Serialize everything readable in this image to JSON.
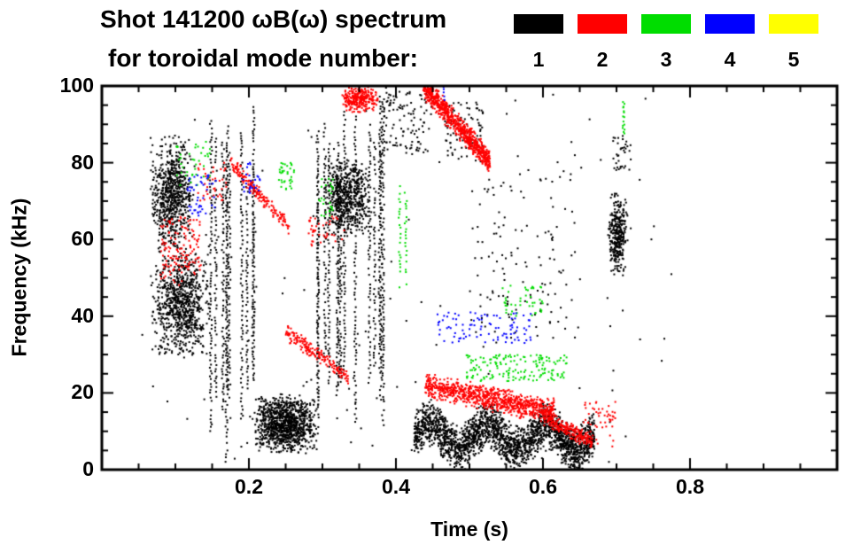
{
  "chart_data": {
    "type": "scatter",
    "title_line1": "Shot 141200 ωB(ω) spectrum",
    "title_line2": "for toroidal mode number:",
    "xlabel": "Time (s)",
    "ylabel": "Frequency (kHz)",
    "xlim": [
      0.0,
      1.0
    ],
    "ylim": [
      0,
      100
    ],
    "x_major_ticks": [
      0.2,
      0.4,
      0.6,
      0.8
    ],
    "x_tick_labels": [
      "0.2",
      "0.4",
      "0.6",
      "0.8"
    ],
    "x_minor_step": 0.05,
    "y_major_ticks": [
      0,
      20,
      40,
      60,
      80,
      100
    ],
    "y_tick_labels": [
      "0",
      "20",
      "40",
      "60",
      "80",
      "100"
    ],
    "y_minor_step": 5,
    "grid": false,
    "legend_position": "top-right",
    "legend": [
      {
        "label": "1",
        "color": "#000000"
      },
      {
        "label": "2",
        "color": "#ff0000"
      },
      {
        "label": "3",
        "color": "#00dd00"
      },
      {
        "label": "4",
        "color": "#0000ff"
      },
      {
        "label": "5",
        "color": "#ffff00"
      }
    ],
    "mode_colors": {
      "1": "#000000",
      "2": "#ff0000",
      "3": "#00dd00",
      "4": "#0000ff",
      "5": "#ffff00"
    },
    "clusters": [
      {
        "mode": "1",
        "shape": "blob",
        "t": [
          0.065,
          0.125
        ],
        "f": [
          55,
          88
        ],
        "n": 700
      },
      {
        "mode": "1",
        "shape": "blob",
        "t": [
          0.065,
          0.148
        ],
        "f": [
          28,
          58
        ],
        "n": 800
      },
      {
        "mode": "1",
        "shape": "vlines",
        "t": [
          0.145,
          0.228
        ],
        "f": [
          2,
          97
        ],
        "lines": 10
      },
      {
        "mode": "1",
        "shape": "blob",
        "t": [
          0.205,
          0.295
        ],
        "f": [
          4,
          20
        ],
        "n": 1000
      },
      {
        "mode": "1",
        "shape": "vlines",
        "t": [
          0.285,
          0.385
        ],
        "f": [
          8,
          100
        ],
        "lines": 14
      },
      {
        "mode": "1",
        "shape": "blob",
        "t": [
          0.3,
          0.368
        ],
        "f": [
          60,
          82
        ],
        "n": 550
      },
      {
        "mode": "1",
        "shape": "speckle",
        "t": [
          0.38,
          0.45
        ],
        "f": [
          82,
          100
        ],
        "n": 120
      },
      {
        "mode": "1",
        "shape": "band",
        "t": [
          0.425,
          0.67
        ],
        "f": [
          9,
          8
        ],
        "thickness": 11,
        "wave_amp": 3,
        "wave_len": 0.08,
        "n": 2200
      },
      {
        "mode": "1",
        "shape": "speckle",
        "t": [
          0.465,
          0.52
        ],
        "f": [
          80,
          96
        ],
        "n": 90
      },
      {
        "mode": "1",
        "shape": "speckle",
        "t": [
          0.5,
          0.645
        ],
        "f": [
          33,
          78
        ],
        "n": 120
      },
      {
        "mode": "1",
        "shape": "blob",
        "t": [
          0.688,
          0.716
        ],
        "f": [
          50,
          73
        ],
        "n": 320
      },
      {
        "mode": "1",
        "shape": "speckle",
        "t": [
          0.695,
          0.72
        ],
        "f": [
          78,
          87
        ],
        "n": 35
      },
      {
        "mode": "1",
        "shape": "speckle",
        "t": [
          0.05,
          0.78
        ],
        "f": [
          2,
          98
        ],
        "n": 140
      },
      {
        "mode": "2",
        "shape": "speckle",
        "t": [
          0.08,
          0.135
        ],
        "f": [
          48,
          66
        ],
        "n": 140
      },
      {
        "mode": "2",
        "shape": "band",
        "t": [
          0.175,
          0.255
        ],
        "f": [
          80,
          63
        ],
        "thickness": 4,
        "n": 170
      },
      {
        "mode": "2",
        "shape": "band",
        "t": [
          0.25,
          0.335
        ],
        "f": [
          36,
          24
        ],
        "thickness": 4,
        "n": 180
      },
      {
        "mode": "2",
        "shape": "blob",
        "t": [
          0.325,
          0.378
        ],
        "f": [
          93,
          100
        ],
        "n": 280
      },
      {
        "mode": "2",
        "shape": "band",
        "t": [
          0.437,
          0.528
        ],
        "f": [
          100,
          80
        ],
        "thickness": 6,
        "n": 750
      },
      {
        "mode": "2",
        "shape": "band",
        "t": [
          0.44,
          0.615
        ],
        "f": [
          22,
          15
        ],
        "thickness": 6,
        "n": 850
      },
      {
        "mode": "2",
        "shape": "band",
        "t": [
          0.6,
          0.668
        ],
        "f": [
          14,
          7
        ],
        "thickness": 4,
        "n": 220
      },
      {
        "mode": "2",
        "shape": "speckle",
        "t": [
          0.28,
          0.33
        ],
        "f": [
          58,
          66
        ],
        "n": 40
      },
      {
        "mode": "2",
        "shape": "speckle",
        "t": [
          0.655,
          0.7
        ],
        "f": [
          6,
          18
        ],
        "n": 50
      },
      {
        "mode": "2",
        "shape": "speckle",
        "t": [
          0.13,
          0.17
        ],
        "f": [
          70,
          80
        ],
        "n": 40
      },
      {
        "mode": "3",
        "shape": "vlines",
        "t": [
          0.403,
          0.415
        ],
        "f": [
          44,
          80
        ],
        "lines": 2
      },
      {
        "mode": "3",
        "shape": "speckle",
        "t": [
          0.495,
          0.635
        ],
        "f": [
          23,
          30
        ],
        "n": 160
      },
      {
        "mode": "3",
        "shape": "speckle",
        "t": [
          0.545,
          0.6
        ],
        "f": [
          40,
          48
        ],
        "n": 45
      },
      {
        "mode": "3",
        "shape": "speckle",
        "t": [
          0.24,
          0.262
        ],
        "f": [
          73,
          80
        ],
        "n": 35
      },
      {
        "mode": "3",
        "shape": "vlines",
        "t": [
          0.7,
          0.713
        ],
        "f": [
          87,
          97
        ],
        "lines": 2
      },
      {
        "mode": "3",
        "shape": "speckle",
        "t": [
          0.1,
          0.148
        ],
        "f": [
          74,
          86
        ],
        "n": 40
      },
      {
        "mode": "3",
        "shape": "speckle",
        "t": [
          0.295,
          0.315
        ],
        "f": [
          66,
          76
        ],
        "n": 28
      },
      {
        "mode": "4",
        "shape": "speckle",
        "t": [
          0.455,
          0.585
        ],
        "f": [
          33,
          41
        ],
        "n": 95
      },
      {
        "mode": "4",
        "shape": "vlines",
        "t": [
          0.463,
          0.473
        ],
        "f": [
          94,
          100
        ],
        "lines": 1
      },
      {
        "mode": "4",
        "shape": "speckle",
        "t": [
          0.115,
          0.155
        ],
        "f": [
          66,
          77
        ],
        "n": 45
      },
      {
        "mode": "4",
        "shape": "speckle",
        "t": [
          0.19,
          0.215
        ],
        "f": [
          72,
          80
        ],
        "n": 25
      }
    ]
  }
}
